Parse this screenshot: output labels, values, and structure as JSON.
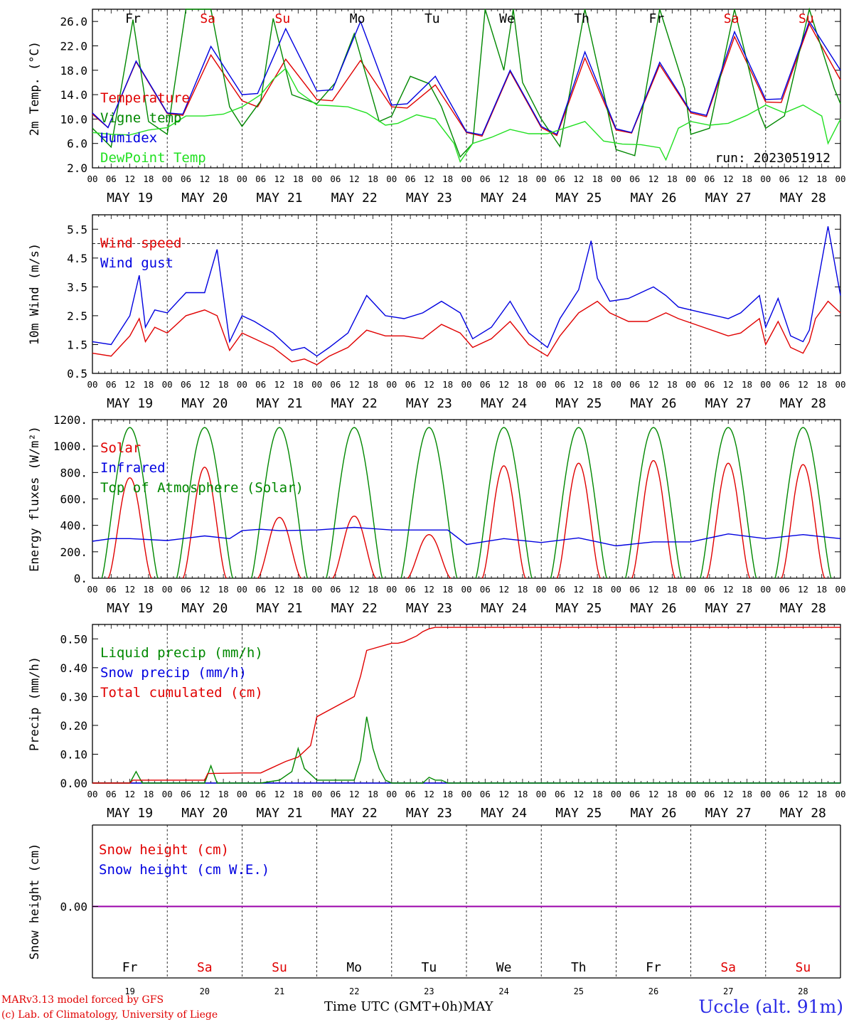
{
  "meta": {
    "run_label": "run: 2023051912",
    "credit_line1": "MARv3.13 model forced by GFS",
    "credit_line2": "(c) Lab. of Climatology, University of Liege",
    "time_axis_label": "Time UTC (GMT+0h)",
    "month_label": "MAY",
    "station": "Uccle (alt. 91m)"
  },
  "days": {
    "names": [
      "Fr",
      "Sa",
      "Su",
      "Mo",
      "Tu",
      "We",
      "Th",
      "Fr",
      "Sa",
      "Su"
    ],
    "name_colors": [
      "#000000",
      "#e00000",
      "#e00000",
      "#000000",
      "#000000",
      "#000000",
      "#000000",
      "#000000",
      "#e00000",
      "#e00000"
    ],
    "labels": [
      "MAY 19",
      "MAY 20",
      "MAY 21",
      "MAY 22",
      "MAY 23",
      "MAY 24",
      "MAY 25",
      "MAY 26",
      "MAY 27",
      "MAY 28"
    ],
    "numbers": [
      "19",
      "20",
      "21",
      "22",
      "23",
      "24",
      "25",
      "26",
      "27",
      "28"
    ],
    "hour_ticks": [
      "00",
      "06",
      "12",
      "18"
    ],
    "final_tick": "00"
  },
  "colors": {
    "red": "#e00000",
    "green": "#008800",
    "blue": "#0000e0",
    "lightgreen": "#22e022",
    "purple": "#9900aa"
  },
  "chart_data": [
    {
      "type": "line",
      "ylabel": "2m Temp. (°C)",
      "ylim": [
        2,
        28
      ],
      "yticks": [
        "26.0",
        "22.0",
        "18.0",
        "14.0",
        "10.0",
        "6.0",
        "2.0"
      ],
      "x_unit": "hours since 19 May 00 UTC",
      "series": [
        {
          "name": "Temperature",
          "color": "#e00000",
          "x": [
            0,
            5,
            14,
            24,
            29,
            38,
            48,
            53,
            62,
            72,
            77,
            86,
            96,
            101,
            110,
            120,
            125,
            134,
            144,
            149,
            158,
            168,
            173,
            182,
            192,
            197,
            206,
            216,
            221,
            230,
            240
          ],
          "values": [
            10.8,
            8.6,
            19.4,
            10.9,
            10.6,
            20.5,
            13.0,
            12.0,
            19.8,
            13.2,
            13.0,
            19.6,
            12.0,
            11.8,
            15.6,
            7.8,
            7.2,
            17.8,
            8.6,
            7.3,
            20.0,
            8.2,
            7.7,
            18.9,
            11.0,
            10.4,
            23.5,
            12.8,
            12.7,
            25.6,
            16.4
          ]
        },
        {
          "name": "Vigne temp",
          "color": "#008800",
          "x": [
            0,
            6,
            13,
            18,
            24,
            30,
            38,
            44,
            48,
            54,
            58,
            64,
            72,
            78,
            84,
            92,
            96,
            102,
            108,
            112,
            118,
            122,
            126,
            132,
            135,
            138,
            144,
            150,
            158,
            165,
            168,
            174,
            182,
            190,
            192,
            198,
            206,
            214,
            216,
            222,
            230,
            238,
            240
          ],
          "values": [
            8.5,
            5.4,
            26.3,
            9.6,
            7.5,
            28,
            28,
            12,
            8.8,
            13,
            26.5,
            14,
            12.5,
            16,
            24,
            9.6,
            10.5,
            17,
            15.8,
            12,
            3.8,
            6,
            28,
            18,
            28,
            16,
            10,
            5.5,
            28,
            12,
            5,
            4,
            28,
            15,
            7.5,
            8.5,
            28,
            11,
            8.5,
            10.5,
            28,
            15,
            12.5
          ]
        },
        {
          "name": "Humidex",
          "color": "#0000e0",
          "x": [
            0,
            5,
            14,
            24,
            29,
            38,
            48,
            53,
            62,
            72,
            77,
            86,
            96,
            101,
            110,
            120,
            125,
            134,
            144,
            149,
            158,
            168,
            173,
            182,
            192,
            197,
            206,
            216,
            221,
            230,
            240
          ],
          "values": [
            11.0,
            8.6,
            19.5,
            11.0,
            10.8,
            21.9,
            14.0,
            14.2,
            24.8,
            14.6,
            14.8,
            26.0,
            12.3,
            12.5,
            17.0,
            7.9,
            7.4,
            18.0,
            8.8,
            7.5,
            21.0,
            8.4,
            7.8,
            19.3,
            11.2,
            10.6,
            24.3,
            13.2,
            13.3,
            26.0,
            18.0
          ]
        },
        {
          "name": "DewPoint Temp",
          "color": "#22e022",
          "x": [
            0,
            6,
            12,
            18,
            24,
            30,
            36,
            42,
            48,
            54,
            58,
            62,
            66,
            72,
            76,
            82,
            88,
            94,
            98,
            104,
            110,
            116,
            118,
            122,
            128,
            134,
            140,
            146,
            152,
            158,
            164,
            170,
            176,
            182,
            184,
            188,
            192,
            198,
            204,
            210,
            216,
            222,
            228,
            234,
            236,
            240
          ],
          "values": [
            7.8,
            7.5,
            7.4,
            8.2,
            8.6,
            10.5,
            10.5,
            10.8,
            12.0,
            14.0,
            16.5,
            18.3,
            14.5,
            12.3,
            12.2,
            12.0,
            11.0,
            9.0,
            9.3,
            10.7,
            10.0,
            6.0,
            3.0,
            6.0,
            7.0,
            8.3,
            7.6,
            7.6,
            8.6,
            9.6,
            6.4,
            5.9,
            5.8,
            5.3,
            3.3,
            8.5,
            9.6,
            9.0,
            9.3,
            10.6,
            12.3,
            11.0,
            12.3,
            10.5,
            6.0,
            10.0
          ]
        }
      ]
    },
    {
      "type": "line",
      "ylabel": "10m Wind (m/s)",
      "ylim": [
        0.5,
        6.0
      ],
      "yticks": [
        "5.5",
        "4.5",
        "3.5",
        "2.5",
        "1.5",
        "0.5"
      ],
      "reference_line": 5.0,
      "x_unit": "hours since 19 May 00 UTC",
      "series": [
        {
          "name": "Wind speed",
          "color": "#e00000",
          "x": [
            0,
            6,
            12,
            15,
            17,
            20,
            24,
            30,
            36,
            40,
            44,
            48,
            52,
            58,
            64,
            68,
            72,
            76,
            82,
            88,
            94,
            100,
            106,
            112,
            118,
            122,
            128,
            134,
            140,
            146,
            150,
            156,
            162,
            166,
            172,
            178,
            180,
            184,
            188,
            196,
            204,
            208,
            214,
            216,
            220,
            224,
            228,
            230,
            232,
            236,
            240
          ],
          "values": [
            1.2,
            1.1,
            1.8,
            2.4,
            1.6,
            2.1,
            1.9,
            2.5,
            2.7,
            2.5,
            1.3,
            1.9,
            1.7,
            1.4,
            0.9,
            1.0,
            0.8,
            1.1,
            1.4,
            2.0,
            1.8,
            1.8,
            1.7,
            2.2,
            1.9,
            1.4,
            1.7,
            2.3,
            1.5,
            1.1,
            1.8,
            2.6,
            3.0,
            2.6,
            2.3,
            2.3,
            2.4,
            2.6,
            2.4,
            2.1,
            1.8,
            1.9,
            2.4,
            1.5,
            2.3,
            1.4,
            1.2,
            1.6,
            2.4,
            3.0,
            2.6
          ]
        },
        {
          "name": "Wind gust",
          "color": "#0000e0",
          "x": [
            0,
            6,
            12,
            15,
            17,
            20,
            24,
            30,
            36,
            40,
            44,
            48,
            52,
            58,
            64,
            68,
            72,
            76,
            82,
            88,
            94,
            100,
            106,
            112,
            118,
            122,
            128,
            134,
            140,
            146,
            150,
            156,
            160,
            162,
            166,
            172,
            178,
            180,
            184,
            188,
            196,
            204,
            208,
            214,
            216,
            220,
            224,
            228,
            230,
            232,
            236,
            240
          ],
          "values": [
            1.6,
            1.5,
            2.5,
            3.9,
            2.1,
            2.7,
            2.6,
            3.3,
            3.3,
            4.8,
            1.6,
            2.5,
            2.3,
            1.9,
            1.3,
            1.4,
            1.1,
            1.4,
            1.9,
            3.2,
            2.5,
            2.4,
            2.6,
            3.0,
            2.6,
            1.7,
            2.1,
            3.0,
            1.9,
            1.4,
            2.4,
            3.4,
            5.1,
            3.8,
            3.0,
            3.1,
            3.4,
            3.5,
            3.2,
            2.8,
            2.6,
            2.4,
            2.6,
            3.2,
            2.1,
            3.1,
            1.8,
            1.6,
            2.0,
            3.2,
            5.6,
            3.2
          ]
        }
      ]
    },
    {
      "type": "line",
      "ylabel": "Energy fluxes (W/m²)",
      "ylim": [
        0,
        1200
      ],
      "yticks": [
        "1200.",
        "1000.",
        "800.",
        "600.",
        "400.",
        "200.",
        "0."
      ],
      "x_unit": "hours since 19 May 00 UTC",
      "solar_peaks": [
        760,
        840,
        460,
        470,
        330,
        850,
        870,
        890,
        870,
        860
      ],
      "series": [
        {
          "name": "Solar",
          "color": "#e00000"
        },
        {
          "name": "Infrared",
          "color": "#0000e0",
          "x": [
            0,
            6,
            12,
            24,
            36,
            44,
            48,
            54,
            60,
            72,
            84,
            96,
            114,
            120,
            132,
            144,
            156,
            168,
            180,
            192,
            204,
            216,
            228,
            240
          ],
          "values": [
            280,
            300,
            300,
            285,
            320,
            300,
            360,
            370,
            360,
            365,
            385,
            365,
            365,
            255,
            300,
            270,
            305,
            245,
            275,
            275,
            335,
            300,
            330,
            300
          ]
        },
        {
          "name": "Top of Atmosphere (Solar)",
          "color": "#008800",
          "peak": 1140
        }
      ]
    },
    {
      "type": "line",
      "ylabel": "Precip (mm/h)",
      "ylim": [
        0,
        0.55
      ],
      "yticks": [
        "0.50",
        "0.40",
        "0.30",
        "0.20",
        "0.10",
        "0.00"
      ],
      "x_unit": "hours since 19 May 00 UTC",
      "series": [
        {
          "name": "Liquid precip (mm/h)",
          "color": "#008800",
          "x": [
            0,
            12,
            14,
            16,
            18,
            36,
            38,
            40,
            42,
            54,
            60,
            64,
            66,
            68,
            72,
            84,
            86,
            88,
            90,
            92,
            94,
            96,
            106,
            108,
            110,
            112,
            114,
            240
          ],
          "values": [
            0,
            0,
            0.04,
            0,
            0,
            0,
            0.06,
            0,
            0,
            0,
            0.01,
            0.04,
            0.12,
            0.05,
            0.01,
            0.01,
            0.08,
            0.23,
            0.12,
            0.05,
            0.01,
            0,
            0,
            0.02,
            0.01,
            0.01,
            0,
            0
          ]
        },
        {
          "name": "Snow precip (mm/h)",
          "color": "#0000e0",
          "x": [
            0,
            240
          ],
          "values": [
            0,
            0
          ]
        },
        {
          "name": "Total cumulated (cm)",
          "color": "#e00000",
          "x": [
            0,
            12,
            13,
            36,
            37,
            48,
            54,
            60,
            62,
            66,
            70,
            72,
            84,
            86,
            88,
            96,
            98,
            100,
            104,
            106,
            108,
            110,
            240
          ],
          "values": [
            0,
            0,
            0.01,
            0.01,
            0.033,
            0.035,
            0.035,
            0.065,
            0.075,
            0.09,
            0.13,
            0.23,
            0.3,
            0.37,
            0.46,
            0.485,
            0.485,
            0.49,
            0.51,
            0.525,
            0.535,
            0.54,
            0.54
          ]
        }
      ]
    },
    {
      "type": "line",
      "ylabel": "Snow height (cm)",
      "yticks": [
        "0.00"
      ],
      "x_unit": "hours since 19 May 00 UTC",
      "series": [
        {
          "name": "Snow height (cm)",
          "color": "#e00000",
          "x": [
            0,
            240
          ],
          "values": [
            0,
            0
          ]
        },
        {
          "name": "Snow height (cm W.E.)",
          "color": "#0000e0",
          "x": [
            0,
            240
          ],
          "values": [
            0,
            0
          ]
        }
      ]
    }
  ]
}
